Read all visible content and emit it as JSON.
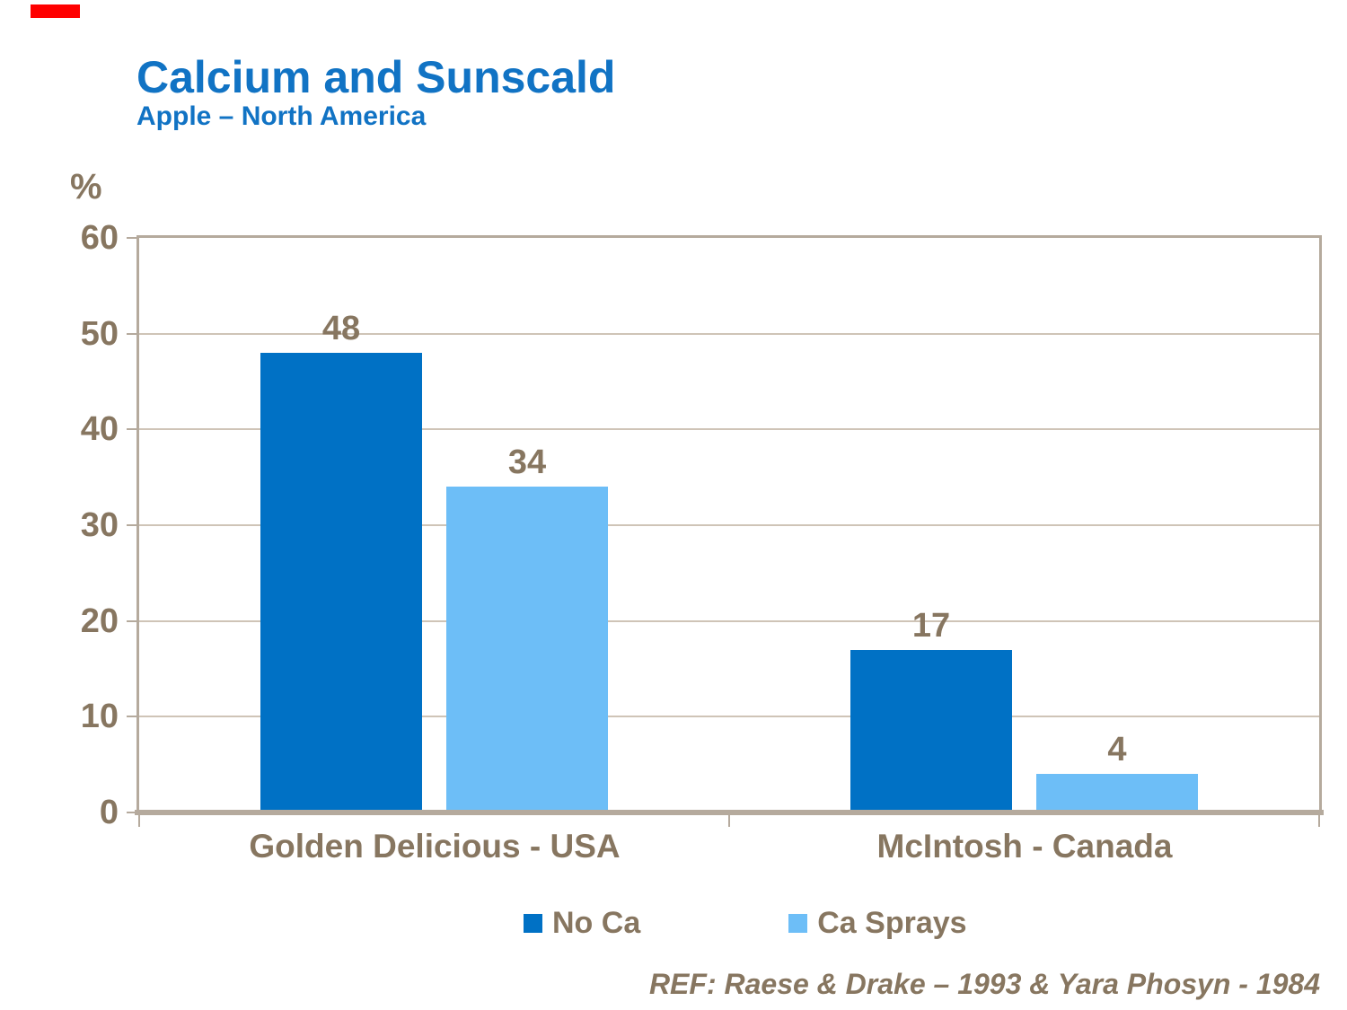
{
  "slide": {
    "title": "Calcium and Sunscald",
    "subtitle": "Apple – North America",
    "reference": "REF: Raese & Drake – 1993 & Yara Phosyn - 1984"
  },
  "colors": {
    "background": "#FFFFFF",
    "title_blue": "#1173C4",
    "text_taupe": "#877660",
    "axis_frame": "#B5AA9D",
    "gridline": "#CFC4B7",
    "series_no_ca": "#0071C5",
    "series_ca_sprays": "#6DBEF7",
    "corner_mark_red": "#FF0000"
  },
  "chart_data": {
    "type": "bar",
    "title": "Calcium and Sunscald",
    "subtitle": "Apple – North America",
    "xlabel": "",
    "ylabel": "%",
    "ylim": [
      0,
      60
    ],
    "yticks": [
      0,
      10,
      20,
      30,
      40,
      50,
      60
    ],
    "grid": true,
    "legend_position": "bottom",
    "categories": [
      "Golden Delicious - USA",
      "McIntosh - Canada"
    ],
    "series": [
      {
        "name": "No Ca",
        "color": "#0071C5",
        "values": [
          48,
          17
        ]
      },
      {
        "name": "Ca Sprays",
        "color": "#6DBEF7",
        "values": [
          34,
          4
        ]
      }
    ]
  }
}
